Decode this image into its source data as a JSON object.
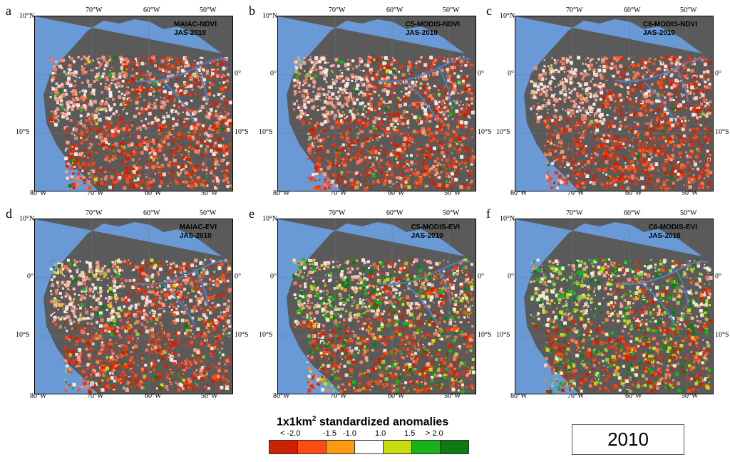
{
  "panels": [
    {
      "letter": "a",
      "label_line1": "MAIAC-NDVI",
      "label_line2": "JAS-2010",
      "redness": 0.55,
      "greenness": 0.05,
      "top_left_lat": "",
      "top_right_lat": "",
      "left_eq": "",
      "right_eq": "0°",
      "left_10s": "10°S",
      "right_10s": "10°S",
      "top_lon": [
        "70°W",
        "60°W",
        "50°W"
      ],
      "bottom_lon": [
        "80°W",
        "70°W",
        "60°W",
        "50°W"
      ],
      "lat_10n": "10°N"
    },
    {
      "letter": "b",
      "label_line1": "C5-MODIS-NDVI",
      "label_line2": "JAS-2010",
      "redness": 0.6,
      "greenness": 0.05,
      "top_left_lat": "",
      "top_right_lat": "",
      "left_eq": "0°",
      "right_eq": "0°",
      "left_10s": "10°S",
      "right_10s": "10°S",
      "top_lon": [
        "70°W",
        "60°W",
        "50°W"
      ],
      "bottom_lon": [
        "80°W",
        "70°W",
        "60°W",
        "50°W"
      ],
      "lat_10n": "10°N"
    },
    {
      "letter": "c",
      "label_line1": "C6-MODIS-NDVI",
      "label_line2": "JAS-2010",
      "redness": 0.6,
      "greenness": 0.02,
      "top_left_lat": "",
      "top_right_lat": "",
      "left_eq": "0°",
      "right_eq": "0°",
      "left_10s": "10°S",
      "right_10s": "10°S",
      "top_lon": [
        "70°W",
        "60°W",
        "50°W"
      ],
      "bottom_lon": [
        "80°W",
        "70°W",
        "60°W",
        "50°W"
      ],
      "lat_10n": "10°N"
    },
    {
      "letter": "d",
      "label_line1": "MAIAC-EVI",
      "label_line2": "JAS-2010",
      "redness": 0.5,
      "greenness": 0.12,
      "top_left_lat": "",
      "top_right_lat": "",
      "left_eq": "0°",
      "right_eq": "0°",
      "left_10s": "10°S",
      "right_10s": "10°S",
      "top_lon": [
        "70°W",
        "60°W",
        "50°W"
      ],
      "bottom_lon": [
        "80°W",
        "70°W",
        "60°W",
        "50°W"
      ],
      "lat_10n": "10°N"
    },
    {
      "letter": "e",
      "label_line1": "C5-MODIS-EVI",
      "label_line2": "JAS-2010",
      "redness": 0.4,
      "greenness": 0.3,
      "top_left_lat": "",
      "top_right_lat": "",
      "left_eq": "0°",
      "right_eq": "0°",
      "left_10s": "10°S",
      "right_10s": "10°S",
      "top_lon": [
        "70°W",
        "60°W",
        "50°W"
      ],
      "bottom_lon": [
        "80°W",
        "70°W",
        "60°W",
        "50°W"
      ],
      "lat_10n": "10°N"
    },
    {
      "letter": "f",
      "label_line1": "C6-MODIS-EVI",
      "label_line2": "JAS-2010",
      "redness": 0.35,
      "greenness": 0.4,
      "top_left_lat": "",
      "top_right_lat": "",
      "left_eq": "0°",
      "right_eq": "0°",
      "left_10s": "10°S",
      "right_10s": "10°S",
      "top_lon": [
        "70°W",
        "60°W",
        "50°W"
      ],
      "bottom_lon": [
        "80°W",
        "70°W",
        "60°W",
        "50°W"
      ],
      "lat_10n": "10°N"
    }
  ],
  "legend": {
    "title": "1x1km",
    "title_sup": "2",
    "title_rest": " standardized anomalies",
    "ticks": [
      "< -2.0",
      "-1.5",
      "-1.0",
      "1.0",
      "1.5",
      "> 2.0"
    ],
    "colors": [
      "#cc2200",
      "#ff4a10",
      "#ff9a10",
      "#ffffff",
      "#c8dc10",
      "#16b416",
      "#0e7a14"
    ]
  },
  "year": "2010",
  "colors": {
    "ocean": "#6a9ad6",
    "land_mask": "#5a5a5a"
  }
}
